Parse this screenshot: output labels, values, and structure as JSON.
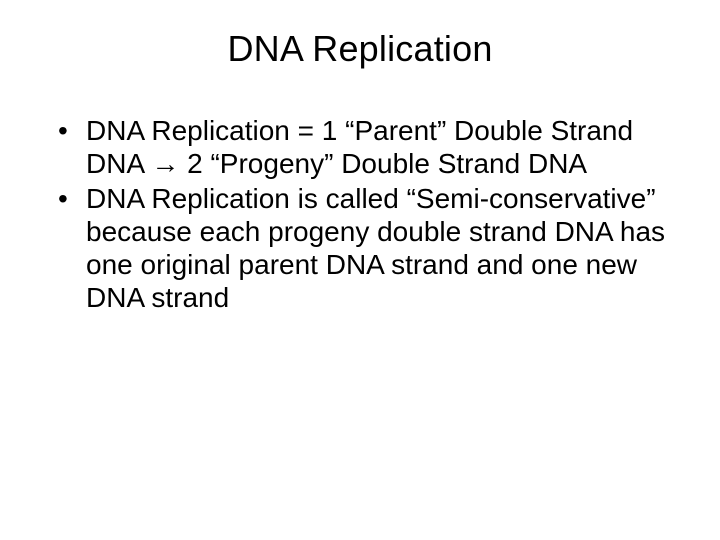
{
  "title": "DNA Replication",
  "bullets": [
    "DNA Replication = 1 “Parent” Double Strand DNA → 2 “Progeny” Double Strand DNA",
    "DNA Replication is called “Semi-conservative” because each progeny double strand DNA has one original parent DNA strand and one new DNA strand"
  ],
  "colors": {
    "background": "#ffffff",
    "text": "#000000"
  },
  "typography": {
    "title_fontsize": 36,
    "body_fontsize": 28,
    "font_family": "Arial"
  }
}
